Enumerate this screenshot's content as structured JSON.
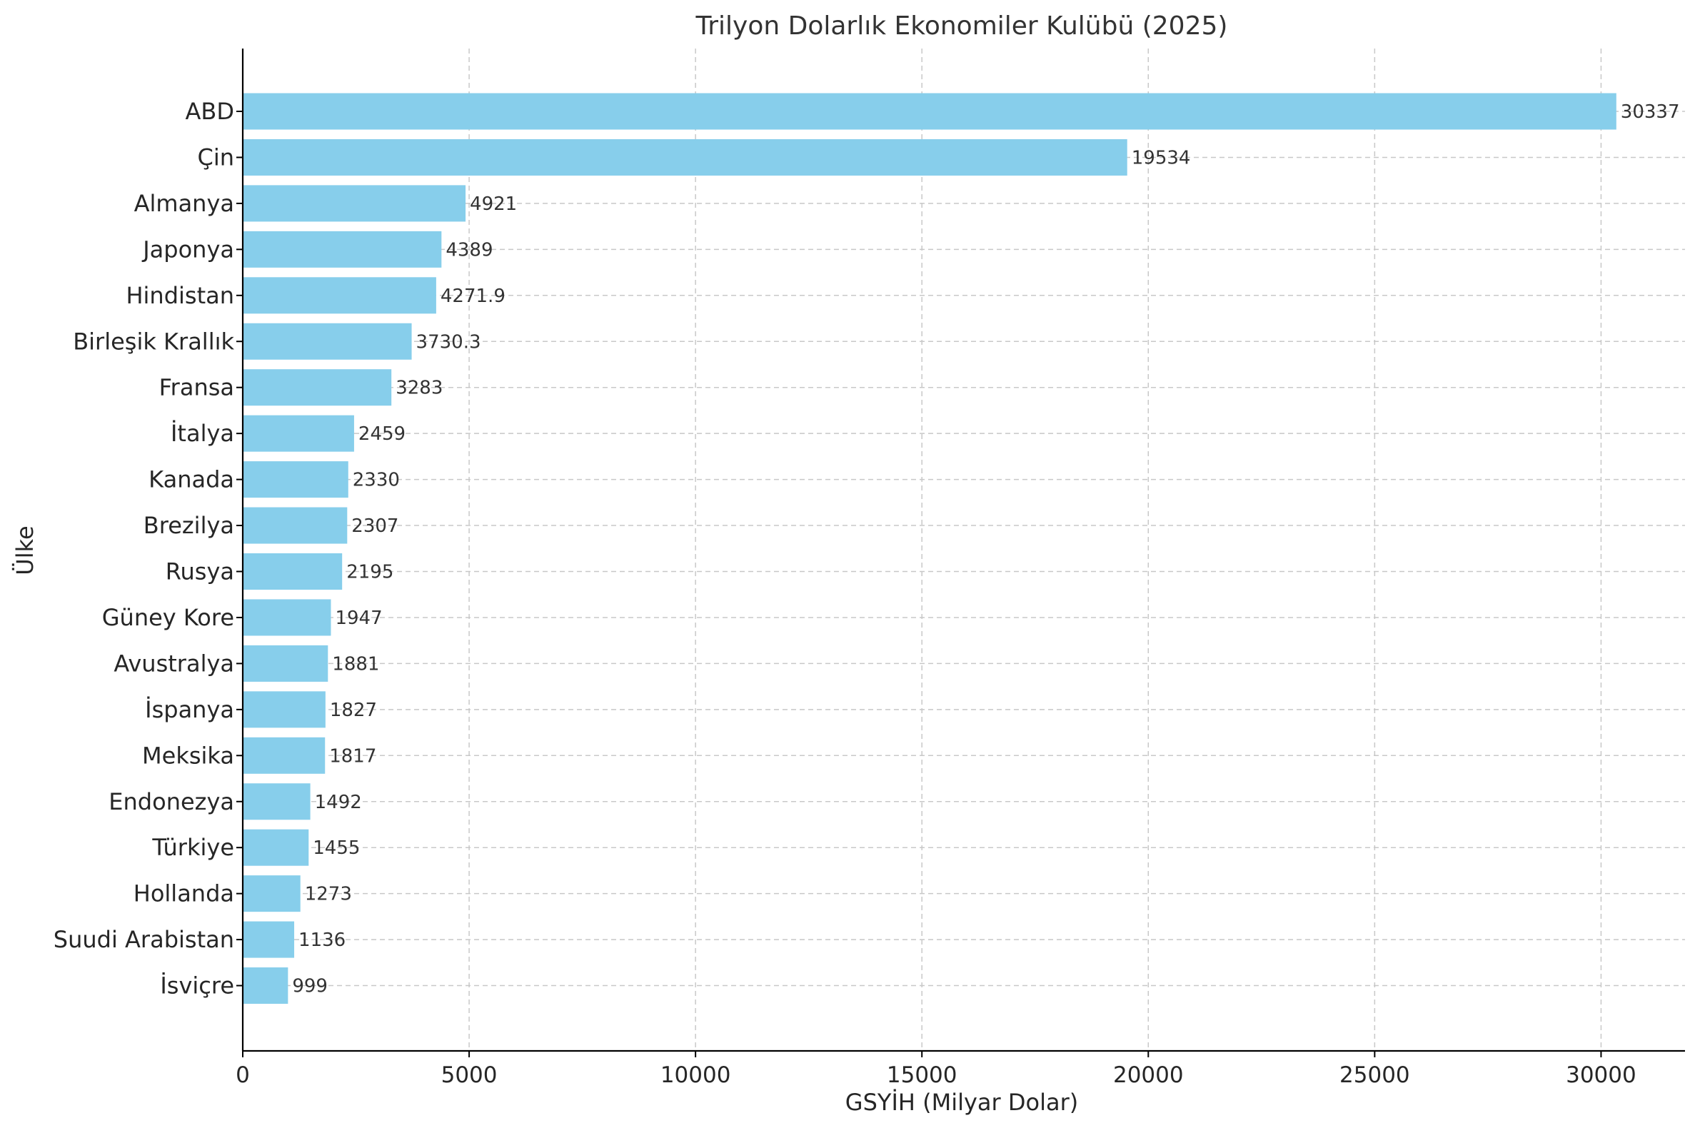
{
  "chart_data": {
    "type": "bar",
    "orientation": "horizontal",
    "title": "Trilyon Dolarlık Ekonomiler Kulübü (2025)",
    "xlabel": "GSYİH (Milyar Dolar)",
    "ylabel": "Ülke",
    "xlim": [
      0,
      31854
    ],
    "xticks": [
      0,
      5000,
      10000,
      15000,
      20000,
      25000,
      30000
    ],
    "grid": true,
    "bar_color": "#87CEEB",
    "categories": [
      "ABD",
      "Çin",
      "Almanya",
      "Japonya",
      "Hindistan",
      "Birleşik Krallık",
      "Fransa",
      "İtalya",
      "Kanada",
      "Brezilya",
      "Rusya",
      "Güney Kore",
      "Avustralya",
      "İspanya",
      "Meksika",
      "Endonezya",
      "Türkiye",
      "Hollanda",
      "Suudi Arabistan",
      "İsviçre"
    ],
    "values": [
      30337,
      19534,
      4921,
      4389,
      4271.9,
      3730.3,
      3283,
      2459,
      2330,
      2307,
      2195,
      1947,
      1881,
      1827,
      1817,
      1492,
      1455,
      1273,
      1136,
      999
    ],
    "value_labels": [
      "30337",
      "19534",
      "4921",
      "4389",
      "4271.9",
      "3730.3",
      "3283",
      "2459",
      "2330",
      "2307",
      "2195",
      "1947",
      "1881",
      "1827",
      "1817",
      "1492",
      "1455",
      "1273",
      "1136",
      "999"
    ]
  }
}
